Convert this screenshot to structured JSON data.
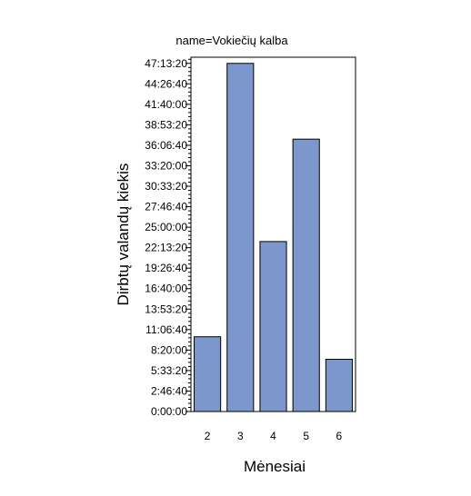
{
  "chart_data": {
    "type": "bar",
    "title": "name=Vokiečių kalba",
    "xlabel": "Mėnesiai",
    "ylabel": "Dirbtų valandų kiekis",
    "categories": [
      "2",
      "3",
      "4",
      "5",
      "6"
    ],
    "values": [
      36500,
      170000,
      83000,
      133000,
      25500
    ],
    "ylim": [
      0,
      173000
    ],
    "y_ticks": [
      {
        "value": 0,
        "label": "0:00:00"
      },
      {
        "value": 10000,
        "label": "2:46:40"
      },
      {
        "value": 20000,
        "label": "5:33:20"
      },
      {
        "value": 30000,
        "label": "8:20:00"
      },
      {
        "value": 40000,
        "label": "11:06:40"
      },
      {
        "value": 50000,
        "label": "13:53:20"
      },
      {
        "value": 60000,
        "label": "16:40:00"
      },
      {
        "value": 70000,
        "label": "19:26:40"
      },
      {
        "value": 80000,
        "label": "22:13:20"
      },
      {
        "value": 90000,
        "label": "25:00:00"
      },
      {
        "value": 100000,
        "label": "27:46:40"
      },
      {
        "value": 110000,
        "label": "30:33:20"
      },
      {
        "value": 120000,
        "label": "33:20:00"
      },
      {
        "value": 130000,
        "label": "36:06:40"
      },
      {
        "value": 140000,
        "label": "38:53:20"
      },
      {
        "value": 150000,
        "label": "41:40:00"
      },
      {
        "value": 160000,
        "label": "44:26:40"
      },
      {
        "value": 170000,
        "label": "47:13:20"
      }
    ],
    "grid": false,
    "colors": {
      "bar_fill": "#7b97cc",
      "bar_stroke": "#000000",
      "axis": "#000000"
    }
  }
}
